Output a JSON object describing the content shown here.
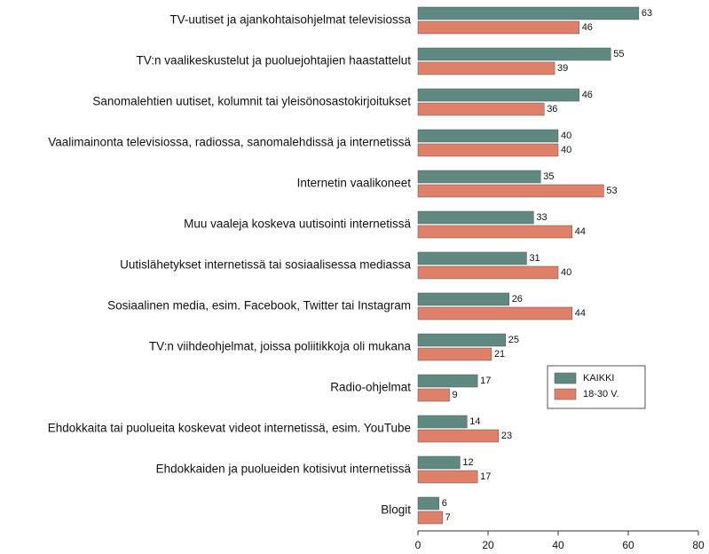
{
  "chart_data": {
    "type": "barh",
    "categories": [
      "TV-uutiset ja ajankohtaisohjelmat televisiossa",
      "TV:n vaalikeskustelut ja puoluejohtajien haastattelut",
      "Sanomalehtien uutiset, kolumnit tai yleisönosastokirjoitukset",
      "Vaalimainonta televisiossa, radiossa, sanomalehdissä ja internetissä",
      "Internetin vaalikoneet",
      "Muu vaaleja koskeva uutisointi internetissä",
      "Uutislähetykset internetissä tai sosiaalisessa mediassa",
      "Sosiaalinen media, esim. Facebook, Twitter tai Instagram",
      "TV:n viihdeohjelmat, joissa poliitikkoja oli mukana",
      "Radio-ohjelmat",
      "Ehdokkaita tai puolueita koskevat videot internetissä, esim. YouTube",
      "Ehdokkaiden ja puolueiden kotisivut internetissä",
      "Blogit"
    ],
    "series": [
      {
        "name": "KAIKKI",
        "color": "#5e8880",
        "values": [
          63,
          55,
          46,
          40,
          35,
          33,
          31,
          26,
          25,
          17,
          14,
          12,
          6
        ]
      },
      {
        "name": "18-30 V.",
        "color": "#df8068",
        "values": [
          46,
          39,
          36,
          40,
          53,
          44,
          40,
          44,
          21,
          9,
          23,
          17,
          7
        ]
      }
    ],
    "xlim": [
      0,
      80
    ],
    "xticks": [
      0,
      20,
      40,
      60,
      80
    ],
    "legend": "lower right"
  }
}
